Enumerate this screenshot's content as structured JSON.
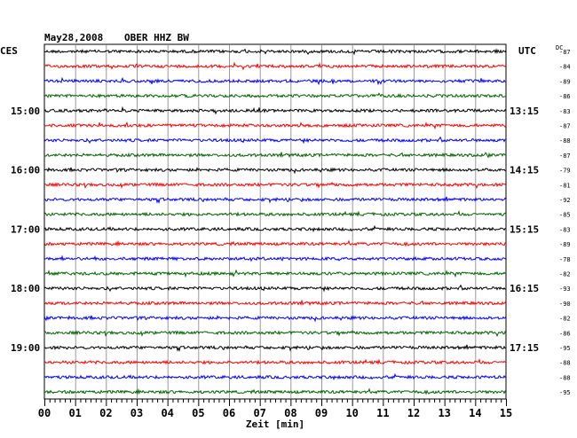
{
  "header": {
    "date": "May28,2008",
    "station": "OBER HHZ BW",
    "left_zone": "CES",
    "right_zone": "UTC",
    "dc_label": "DC"
  },
  "colors": {
    "cycle": [
      "#000000",
      "#ff0000",
      "#0000ff",
      "#006400"
    ],
    "grid": "#808080"
  },
  "chart_data": {
    "type": "line",
    "title": "May28,2008   OBER HHZ BW",
    "xlabel": "Zeit [min]",
    "xlim": [
      0,
      15
    ],
    "x_ticks": [
      "00",
      "01",
      "02",
      "03",
      "04",
      "05",
      "06",
      "07",
      "08",
      "09",
      "10",
      "11",
      "12",
      "13",
      "14",
      "15"
    ],
    "trace_count": 24,
    "trace_minutes": 15,
    "left_time_labels": [
      {
        "trace": 4,
        "text": "15:00"
      },
      {
        "trace": 8,
        "text": "16:00"
      },
      {
        "trace": 12,
        "text": "17:00"
      },
      {
        "trace": 16,
        "text": "18:00"
      },
      {
        "trace": 20,
        "text": "19:00"
      }
    ],
    "right_time_labels": [
      {
        "trace": 4,
        "text": "13:15"
      },
      {
        "trace": 8,
        "text": "14:15"
      },
      {
        "trace": 12,
        "text": "15:15"
      },
      {
        "trace": 16,
        "text": "16:15"
      },
      {
        "trace": 20,
        "text": "17:15"
      }
    ],
    "dc_offsets": [
      "-87",
      "-84",
      "-89",
      "-86",
      "-83",
      "-87",
      "-88",
      "-87",
      "-79",
      "-81",
      "-92",
      "-85",
      "-83",
      "-89",
      "-78",
      "-82",
      "-93",
      "-90",
      "-82",
      "-86",
      "-95",
      "-88",
      "-88",
      "-95"
    ]
  }
}
